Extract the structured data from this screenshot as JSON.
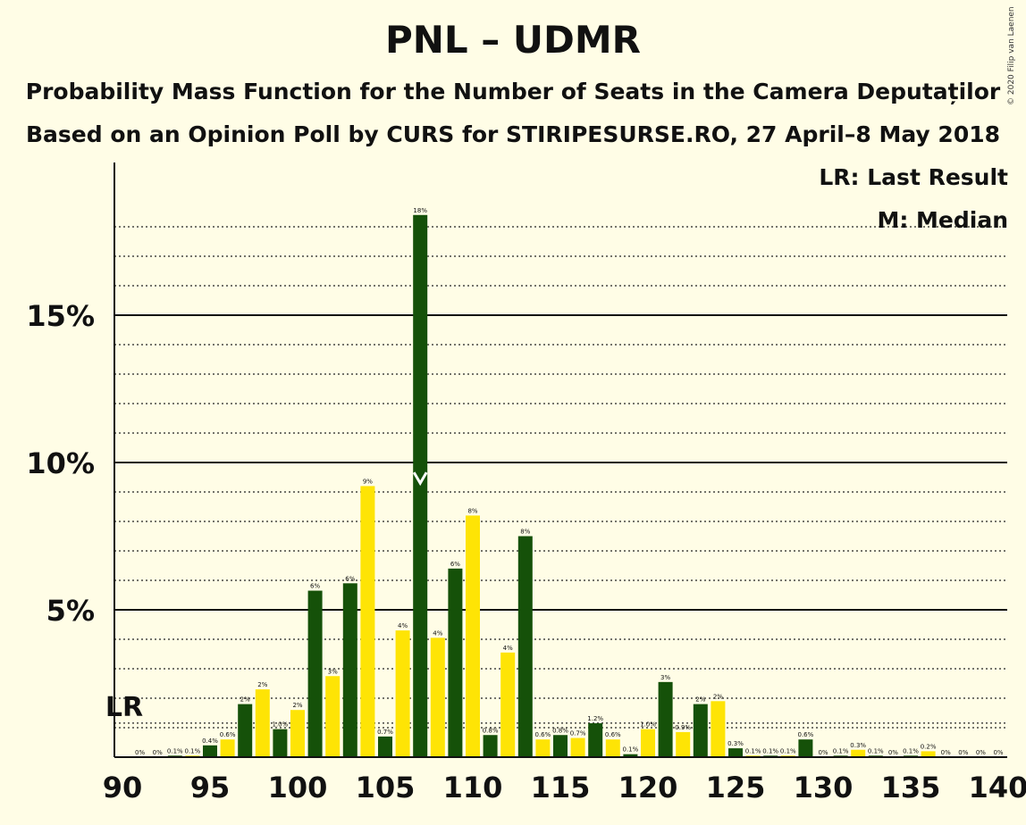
{
  "chart_data": {
    "type": "bar",
    "title": "PNL – UDMR",
    "subtitle": "Probability Mass Function for the Number of Seats in the Camera Deputaților",
    "subtitle2": "Based on an Opinion Poll by CURS for STIRIPESURSE.RO, 27 April–8 May 2018",
    "copyright": "© 2020 Filip van Laenen",
    "legend": {
      "lr": "LR: Last Result",
      "m": "M: Median",
      "placement": "top-right"
    },
    "xlim": [
      90,
      140
    ],
    "ylim": [
      0,
      20
    ],
    "x_ticks": [
      "90",
      "95",
      "100",
      "105",
      "110",
      "115",
      "120",
      "125",
      "130",
      "135",
      "140"
    ],
    "y_ticks": [
      {
        "value": 5,
        "label": "5%"
      },
      {
        "value": 10,
        "label": "10%"
      },
      {
        "value": 15,
        "label": "15%"
      }
    ],
    "last_result": {
      "seat": 90,
      "label": "LR"
    },
    "median": {
      "seat": 107,
      "label": "M"
    },
    "colors": {
      "even": "#155109",
      "odd": "#fee405"
    },
    "bars": [
      {
        "seat": 91,
        "value": 0,
        "label": "0%"
      },
      {
        "seat": 92,
        "value": 0,
        "label": "0%"
      },
      {
        "seat": 93,
        "value": 0.05,
        "label": "0.1%"
      },
      {
        "seat": 94,
        "value": 0.05,
        "label": "0.1%"
      },
      {
        "seat": 95,
        "value": 0.4,
        "label": "0.4%"
      },
      {
        "seat": 96,
        "value": 0.6,
        "label": "0.6%"
      },
      {
        "seat": 97,
        "value": 1.8,
        "label": "2%"
      },
      {
        "seat": 98,
        "value": 2.3,
        "label": "2%"
      },
      {
        "seat": 99,
        "value": 0.95,
        "label": "1.0%"
      },
      {
        "seat": 100,
        "value": 1.6,
        "label": "2%"
      },
      {
        "seat": 101,
        "value": 5.65,
        "label": "6%"
      },
      {
        "seat": 102,
        "value": 2.75,
        "label": "3%"
      },
      {
        "seat": 103,
        "value": 5.9,
        "label": "6%"
      },
      {
        "seat": 104,
        "value": 9.2,
        "label": "9%"
      },
      {
        "seat": 105,
        "value": 0.7,
        "label": "0.7%"
      },
      {
        "seat": 106,
        "value": 4.3,
        "label": "4%"
      },
      {
        "seat": 107,
        "value": 18.4,
        "label": "18%"
      },
      {
        "seat": 108,
        "value": 4.05,
        "label": "4%"
      },
      {
        "seat": 109,
        "value": 6.4,
        "label": "6%"
      },
      {
        "seat": 110,
        "value": 8.2,
        "label": "8%"
      },
      {
        "seat": 111,
        "value": 0.75,
        "label": "0.8%"
      },
      {
        "seat": 112,
        "value": 3.55,
        "label": "4%"
      },
      {
        "seat": 113,
        "value": 7.5,
        "label": "8%"
      },
      {
        "seat": 114,
        "value": 0.6,
        "label": "0.6%"
      },
      {
        "seat": 115,
        "value": 0.75,
        "label": "0.8%"
      },
      {
        "seat": 116,
        "value": 0.65,
        "label": "0.7%"
      },
      {
        "seat": 117,
        "value": 1.15,
        "label": "1.2%"
      },
      {
        "seat": 118,
        "value": 0.6,
        "label": "0.6%"
      },
      {
        "seat": 119,
        "value": 0.1,
        "label": "0.1%"
      },
      {
        "seat": 120,
        "value": 0.95,
        "label": "1.0%"
      },
      {
        "seat": 121,
        "value": 2.55,
        "label": "3%"
      },
      {
        "seat": 122,
        "value": 0.85,
        "label": "0.9%"
      },
      {
        "seat": 123,
        "value": 1.8,
        "label": "2%"
      },
      {
        "seat": 124,
        "value": 1.9,
        "label": "2%"
      },
      {
        "seat": 125,
        "value": 0.3,
        "label": "0.3%"
      },
      {
        "seat": 126,
        "value": 0.05,
        "label": "0.1%"
      },
      {
        "seat": 127,
        "value": 0.05,
        "label": "0.1%"
      },
      {
        "seat": 128,
        "value": 0.05,
        "label": "0.1%"
      },
      {
        "seat": 129,
        "value": 0.6,
        "label": "0.6%"
      },
      {
        "seat": 130,
        "value": 0,
        "label": "0%"
      },
      {
        "seat": 131,
        "value": 0.05,
        "label": "0.1%"
      },
      {
        "seat": 132,
        "value": 0.25,
        "label": "0.3%"
      },
      {
        "seat": 133,
        "value": 0.05,
        "label": "0.1%"
      },
      {
        "seat": 134,
        "value": 0,
        "label": "0%"
      },
      {
        "seat": 135,
        "value": 0.05,
        "label": "0.1%"
      },
      {
        "seat": 136,
        "value": 0.2,
        "label": "0.2%"
      },
      {
        "seat": 137,
        "value": 0,
        "label": "0%"
      },
      {
        "seat": 138,
        "value": 0,
        "label": "0%"
      },
      {
        "seat": 139,
        "value": 0,
        "label": "0%"
      },
      {
        "seat": 140,
        "value": 0,
        "label": "0%"
      }
    ]
  }
}
